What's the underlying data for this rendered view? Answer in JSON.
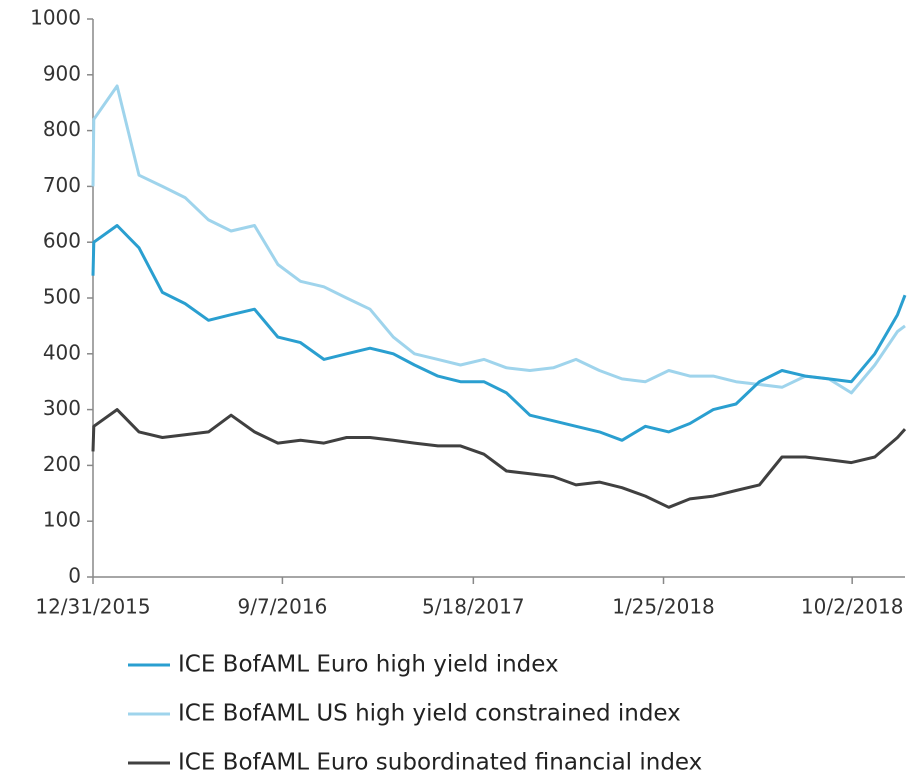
{
  "chart_data": {
    "type": "line",
    "x": [
      "12/31/2015",
      "1/1/2016",
      "2/1/2016",
      "3/1/2016",
      "4/1/2016",
      "5/1/2016",
      "6/1/2016",
      "7/1/2016",
      "8/1/2016",
      "9/1/2016",
      "10/1/2016",
      "11/1/2016",
      "12/1/2016",
      "1/1/2017",
      "2/1/2017",
      "3/1/2017",
      "4/1/2017",
      "5/1/2017",
      "6/1/2017",
      "7/1/2017",
      "8/1/2017",
      "9/1/2017",
      "10/1/2017",
      "11/1/2017",
      "12/1/2017",
      "1/1/2018",
      "2/1/2018",
      "3/1/2018",
      "4/1/2018",
      "5/1/2018",
      "6/1/2018",
      "7/1/2018",
      "8/1/2018",
      "9/1/2018",
      "10/1/2018",
      "11/1/2018",
      "12/1/2018",
      "12/11/2018"
    ],
    "series": [
      {
        "name": "ICE BofAML Euro high yield index",
        "color": "#2a9fd0",
        "values": [
          540,
          600,
          630,
          590,
          510,
          490,
          460,
          470,
          480,
          430,
          420,
          390,
          400,
          410,
          400,
          380,
          360,
          350,
          350,
          330,
          290,
          280,
          270,
          260,
          245,
          270,
          260,
          275,
          300,
          310,
          350,
          370,
          360,
          355,
          350,
          400,
          470,
          505
        ]
      },
      {
        "name": "ICE BofAML US high yield constrained index",
        "color": "#9fd4ec",
        "values": [
          700,
          820,
          880,
          720,
          700,
          680,
          640,
          620,
          630,
          560,
          530,
          520,
          500,
          480,
          430,
          400,
          390,
          380,
          390,
          375,
          370,
          375,
          390,
          370,
          355,
          350,
          370,
          360,
          360,
          350,
          345,
          340,
          360,
          355,
          330,
          380,
          440,
          450
        ]
      },
      {
        "name": "ICE BofAML Euro subordinated financial index",
        "color": "#404040",
        "values": [
          225,
          270,
          300,
          260,
          250,
          255,
          260,
          290,
          260,
          240,
          245,
          240,
          250,
          250,
          245,
          240,
          235,
          235,
          220,
          190,
          185,
          180,
          165,
          170,
          160,
          145,
          125,
          140,
          145,
          155,
          165,
          215,
          215,
          210,
          205,
          215,
          250,
          265
        ]
      }
    ],
    "xlim": [
      "12/31/2015",
      "12/11/2018"
    ],
    "xticks": [
      "12/31/2015",
      "9/7/2016",
      "5/18/2017",
      "1/25/2018",
      "10/2/2018"
    ],
    "ylim": [
      0,
      1000
    ],
    "yticks": [
      0,
      100,
      200,
      300,
      400,
      500,
      600,
      700,
      800,
      900,
      1000
    ]
  }
}
